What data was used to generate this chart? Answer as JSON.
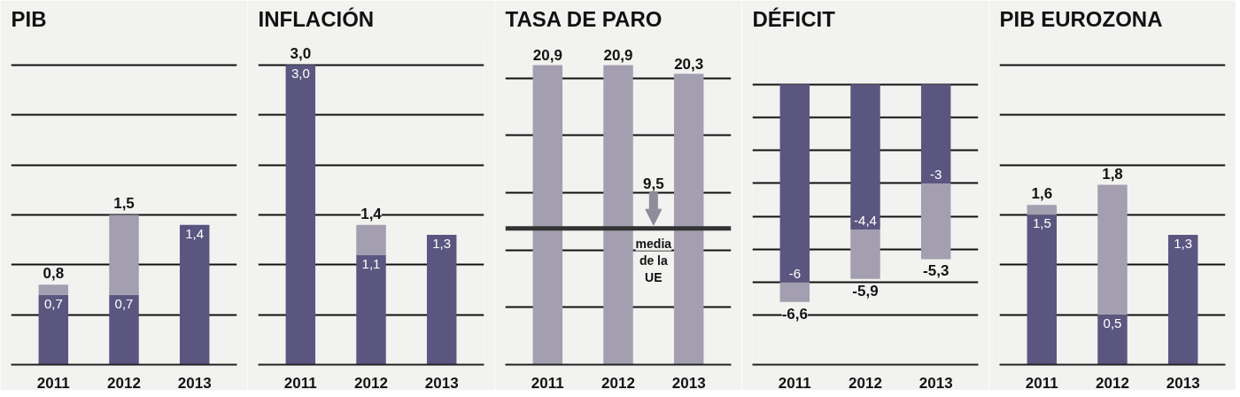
{
  "chart_data": [
    {
      "type": "bar",
      "title": "PIB",
      "categories": [
        "2011",
        "2012",
        "2013"
      ],
      "stacked": true,
      "series": [
        {
          "color": "#5b5680",
          "values": [
            0.7,
            0.7,
            1.4
          ],
          "value_labels": [
            "0,7",
            "0,7",
            "1,4"
          ]
        },
        {
          "color": "#a39fb0",
          "values": [
            0.1,
            0.8,
            null
          ]
        }
      ],
      "totals": [
        "0,8",
        "1,5",
        null
      ],
      "ylim": [
        0,
        3.3
      ],
      "yticks": [
        {
          "value": 0.5,
          "label": null
        },
        {
          "value": 1.0,
          "label": null
        },
        {
          "value": 1.5,
          "label": null
        },
        {
          "value": 2.0,
          "label": null
        },
        {
          "value": 2.5,
          "label": null
        },
        {
          "value": 3.0,
          "label": null
        }
      ],
      "grid": "y",
      "tick_labels": "x"
    },
    {
      "type": "bar",
      "title": "INFLACIÓN",
      "categories": [
        "2011",
        "2012",
        "2013"
      ],
      "stacked": true,
      "series": [
        {
          "color": "#5b5680",
          "values": [
            3.0,
            1.1,
            1.3
          ],
          "value_labels": [
            "3,0",
            "1,1",
            "1,3"
          ]
        },
        {
          "color": "#a39fb0",
          "values": [
            null,
            0.3,
            null
          ]
        }
      ],
      "totals": [
        "3,0",
        "1,4",
        null
      ],
      "ylim": [
        0,
        3.3
      ],
      "yticks": [
        {
          "value": 0.5,
          "label": null
        },
        {
          "value": 1.0,
          "label": null
        },
        {
          "value": 1.5,
          "label": null
        },
        {
          "value": 2.0,
          "label": null
        },
        {
          "value": 2.5,
          "label": null
        },
        {
          "value": 3.0,
          "label": null
        }
      ],
      "grid": "y",
      "tick_labels": "x"
    },
    {
      "type": "bar",
      "title": "TASA DE PARO",
      "categories": [
        "2011",
        "2012",
        "2013"
      ],
      "series": [
        {
          "color": "#a39fb0",
          "values": [
            20.9,
            20.9,
            20.3
          ],
          "value_labels": [
            "20,9",
            "20,9",
            "20,3"
          ]
        }
      ],
      "ref_lines": [
        {
          "axis": "y",
          "value": 9.5,
          "label": "media de la UE",
          "color": "#333333"
        }
      ],
      "annotations": [
        {
          "text": "9,5",
          "y": 9.5
        }
      ],
      "ylim": [
        0,
        23
      ],
      "yticks": [
        {
          "value": 4,
          "label": null
        },
        {
          "value": 8,
          "label": null
        },
        {
          "value": 12,
          "label": null
        },
        {
          "value": 16,
          "label": null
        },
        {
          "value": 20,
          "label": null
        }
      ],
      "grid": "y",
      "tick_labels": "x"
    },
    {
      "type": "bar",
      "title": "DÉFICIT",
      "categories": [
        "2011",
        "2012",
        "2013"
      ],
      "stacked": true,
      "series": [
        {
          "color": "#5b5680",
          "values": [
            -6,
            -4.4,
            -3
          ],
          "value_labels": [
            "-6",
            "-4,4",
            "-3"
          ]
        },
        {
          "color": "#a39fb0",
          "values": [
            -0.6,
            -1.5,
            -2.3
          ]
        }
      ],
      "totals": [
        "-6,6",
        "-5,9",
        "-5,3"
      ],
      "ylim": [
        -8.5,
        1.5
      ],
      "yticks": [
        {
          "value": 0,
          "label": null
        },
        {
          "value": -1,
          "label": null
        },
        {
          "value": -2,
          "label": null
        },
        {
          "value": -3,
          "label": null
        },
        {
          "value": -4,
          "label": null
        },
        {
          "value": -5,
          "label": null
        },
        {
          "value": -6,
          "label": null
        },
        {
          "value": -7,
          "label": null
        }
      ],
      "grid": "y",
      "tick_labels": "x"
    },
    {
      "type": "bar",
      "title": "PIB EUROZONA",
      "categories": [
        "2011",
        "2012",
        "2013"
      ],
      "stacked": true,
      "series": [
        {
          "color": "#5b5680",
          "values": [
            1.5,
            0.5,
            1.3
          ],
          "value_labels": [
            "1,5",
            "0,5",
            "1,3"
          ]
        },
        {
          "color": "#a39fb0",
          "values": [
            0.1,
            1.3,
            null
          ]
        }
      ],
      "totals": [
        "1,6",
        "1,8",
        null
      ],
      "ylim": [
        0,
        3.3
      ],
      "yticks": [
        {
          "value": 0.5,
          "label": null
        },
        {
          "value": 1.0,
          "label": null
        },
        {
          "value": 1.5,
          "label": null
        },
        {
          "value": 2.0,
          "label": null
        },
        {
          "value": 2.5,
          "label": null
        },
        {
          "value": 3.0,
          "label": null
        }
      ],
      "grid": "y",
      "tick_labels": "x"
    }
  ]
}
